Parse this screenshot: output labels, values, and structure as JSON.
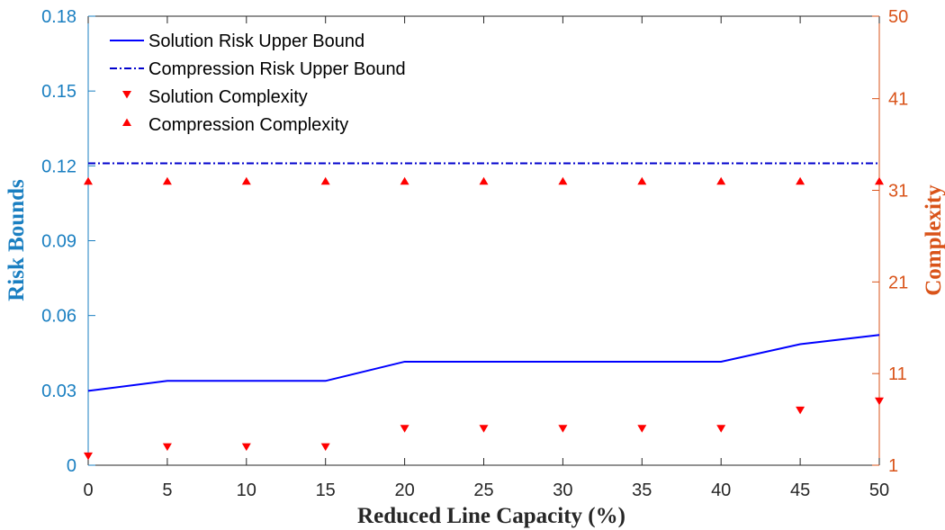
{
  "chart_data": {
    "type": "line",
    "title": "",
    "xlabel": "Reduced Line Capacity (%)",
    "ylabel_left": "Risk Bounds",
    "ylabel_right": "Complexity",
    "x": [
      0,
      5,
      10,
      15,
      20,
      25,
      30,
      35,
      40,
      45,
      50
    ],
    "xticks": [
      "0",
      "5",
      "10",
      "15",
      "20",
      "25",
      "30",
      "35",
      "40",
      "45",
      "50"
    ],
    "xlim": [
      0,
      50
    ],
    "ylim_left": [
      0,
      0.18
    ],
    "yticks_left": [
      "0",
      "0.03",
      "0.06",
      "0.09",
      "0.12",
      "0.15",
      "0.18"
    ],
    "ylim_right": [
      1,
      50
    ],
    "yticks_right": [
      "1",
      "11",
      "21",
      "31",
      "41",
      "50"
    ],
    "legend_position": "top-left",
    "series": [
      {
        "name": "Solution Risk Upper Bound",
        "axis": "left",
        "style": "solid",
        "color": "#0000ff",
        "values": [
          0.0298,
          0.0338,
          0.0338,
          0.0338,
          0.0415,
          0.0415,
          0.0415,
          0.0415,
          0.0415,
          0.0485,
          0.0522
        ]
      },
      {
        "name": "Compression Risk Upper Bound",
        "axis": "left",
        "style": "dashdot",
        "color": "#0000cc",
        "values": [
          0.121,
          0.121,
          0.121,
          0.121,
          0.121,
          0.121,
          0.121,
          0.121,
          0.121,
          0.121,
          0.121
        ]
      },
      {
        "name": "Solution Complexity",
        "axis": "right",
        "style": "marker-triangle-down",
        "color": "#ff0000",
        "values": [
          2,
          3,
          3,
          3,
          5,
          5,
          5,
          5,
          5,
          7,
          8
        ]
      },
      {
        "name": "Compression Complexity",
        "axis": "right",
        "style": "marker-triangle-up",
        "color": "#ff0000",
        "values": [
          32,
          32,
          32,
          32,
          32,
          32,
          32,
          32,
          32,
          32,
          32
        ]
      }
    ]
  }
}
